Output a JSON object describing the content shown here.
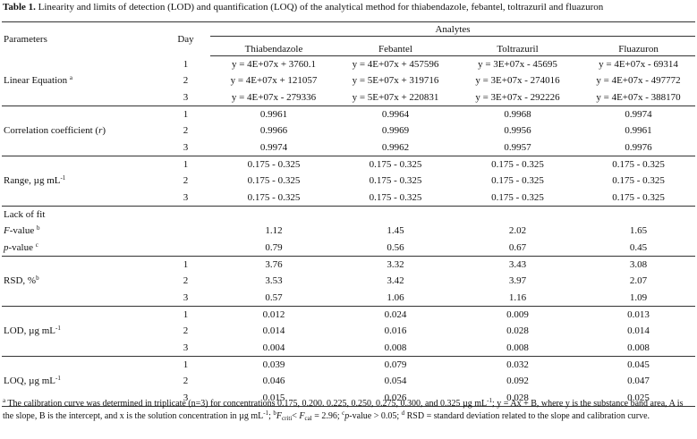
{
  "caption": {
    "label": "Table 1.",
    "text": " Linearity and limits of detection (LOD) and quantification (LOQ) of the analytical method for thiabendazole, febantel, toltrazuril and fluazuron"
  },
  "header": {
    "parameters": "Parameters",
    "day": "Day",
    "analytes": "Analytes",
    "columns": [
      "Thiabendazole",
      "Febantel",
      "Toltrazuril",
      "Fluazuron"
    ]
  },
  "groups": [
    {
      "rows": [
        {
          "day": "1",
          "cells": [
            "y = 4E+07x + 3760.1",
            "y = 4E+07x + 457596",
            "y = 3E+07x - 45695",
            "y = 4E+07x - 69314"
          ]
        },
        {
          "label": [
            {
              "text": "Linear Equation "
            },
            {
              "text": "a",
              "style": "sup"
            }
          ],
          "day": "2",
          "cells": [
            "y = 4E+07x + 121057",
            "y = 5E+07x + 319716",
            "y = 3E+07x - 274016",
            "y = 4E+07x - 497772"
          ]
        },
        {
          "day": "3",
          "cells": [
            "y = 4E+07x - 279336",
            "y = 5E+07x + 220831",
            "y = 3E+07x - 292226",
            "y = 4E+07x - 388170"
          ]
        }
      ]
    },
    {
      "rows": [
        {
          "day": "1",
          "cells": [
            "0.9961",
            "0.9964",
            "0.9968",
            "0.9974"
          ]
        },
        {
          "label": [
            {
              "text": "Correlation coefficient ("
            },
            {
              "text": "r",
              "style": "i"
            },
            {
              "text": ")"
            }
          ],
          "day": "2",
          "cells": [
            "0.9966",
            "0.9969",
            "0.9956",
            "0.9961"
          ]
        },
        {
          "day": "3",
          "cells": [
            "0.9974",
            "0.9962",
            "0.9957",
            "0.9976"
          ]
        }
      ]
    },
    {
      "rows": [
        {
          "day": "1",
          "cells": [
            "0.175 - 0.325",
            "0.175 - 0.325",
            "0.175 - 0.325",
            "0.175 - 0.325"
          ]
        },
        {
          "label": [
            {
              "text": "Range, µg mL"
            },
            {
              "text": "-1",
              "style": "sup"
            }
          ],
          "day": "2",
          "cells": [
            "0.175 - 0.325",
            "0.175 - 0.325",
            "0.175 - 0.325",
            "0.175 - 0.325"
          ]
        },
        {
          "day": "3",
          "cells": [
            "0.175 - 0.325",
            "0.175 - 0.325",
            "0.175 - 0.325",
            "0.175 - 0.325"
          ]
        }
      ]
    },
    {
      "rows": [
        {
          "label": [
            {
              "text": "Lack of fit"
            }
          ]
        },
        {
          "label": [
            {
              "text": "F",
              "style": "i"
            },
            {
              "text": "-value "
            },
            {
              "text": "b",
              "style": "sup"
            }
          ],
          "cells": [
            "1.12",
            "1.45",
            "2.02",
            "1.65"
          ]
        },
        {
          "label": [
            {
              "text": "p",
              "style": "i"
            },
            {
              "text": "-value "
            },
            {
              "text": "c",
              "style": "sup"
            }
          ],
          "cells": [
            "0.79",
            "0.56",
            "0.67",
            "0.45"
          ]
        }
      ]
    },
    {
      "rows": [
        {
          "day": "1",
          "cells": [
            "3.76",
            "3.32",
            "3.43",
            "3.08"
          ]
        },
        {
          "label": [
            {
              "text": "RSD, %"
            },
            {
              "text": "b",
              "style": "sup"
            }
          ],
          "day": "2",
          "cells": [
            "3.53",
            "3.42",
            "3.97",
            "2.07"
          ]
        },
        {
          "day": "3",
          "cells": [
            "0.57",
            "1.06",
            "1.16",
            "1.09"
          ]
        }
      ]
    },
    {
      "rows": [
        {
          "day": "1",
          "cells": [
            "0.012",
            "0.024",
            "0.009",
            "0.013"
          ]
        },
        {
          "label": [
            {
              "text": "LOD, µg mL"
            },
            {
              "text": "-1",
              "style": "sup"
            }
          ],
          "day": "2",
          "cells": [
            "0.014",
            "0.016",
            "0.028",
            "0.014"
          ]
        },
        {
          "day": "3",
          "cells": [
            "0.004",
            "0.008",
            "0.008",
            "0.008"
          ]
        }
      ]
    },
    {
      "rows": [
        {
          "day": "1",
          "cells": [
            "0.039",
            "0.079",
            "0.032",
            "0.045"
          ]
        },
        {
          "label": [
            {
              "text": "LOQ, µg mL"
            },
            {
              "text": "-1",
              "style": "sup"
            }
          ],
          "day": "2",
          "cells": [
            "0.046",
            "0.054",
            "0.092",
            "0.047"
          ]
        },
        {
          "day": "3",
          "cells": [
            "0.015",
            "0.026",
            "0.028",
            "0.025"
          ]
        }
      ]
    }
  ],
  "footnote": [
    {
      "text": "a",
      "style": "sup"
    },
    {
      "text": " The calibration curve was determined in triplicate (n=3) for concentrations 0.175, 0.200. 0.225, 0.250, 0.275, 0.300, and 0.325 µg mL"
    },
    {
      "text": "-1",
      "style": "sup"
    },
    {
      "text": "; y = Ax + B, where y is the substance band area, A is the slope, B is the intercept, and x is the solution concentration in µg mL"
    },
    {
      "text": "-1",
      "style": "sup"
    },
    {
      "text": "; "
    },
    {
      "text": "b",
      "style": "sup"
    },
    {
      "text": "F",
      "style": "i"
    },
    {
      "text": "criti",
      "style": "sub"
    },
    {
      "text": "< "
    },
    {
      "text": "F",
      "style": "i"
    },
    {
      "text": "cal",
      "style": "sub"
    },
    {
      "text": " = 2.96; "
    },
    {
      "text": "c",
      "style": "sup"
    },
    {
      "text": "p",
      "style": "i"
    },
    {
      "text": "-value > 0.05; "
    },
    {
      "text": "d",
      "style": "sup"
    },
    {
      "text": " RSD = standard deviation related to the slope and calibration curve."
    }
  ]
}
